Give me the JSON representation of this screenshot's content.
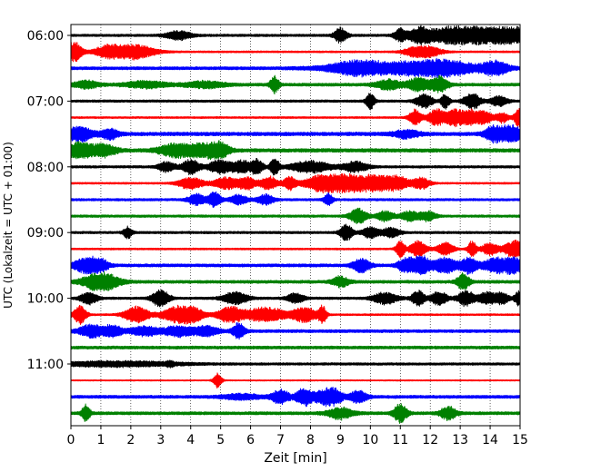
{
  "chart_data": {
    "type": "line",
    "title": "",
    "xlabel": "Zeit  [min]",
    "ylabel": "UTC (Lokalzeit = UTC + 01:00)",
    "xlim": [
      0,
      15
    ],
    "x_ticks": [
      "0",
      "1",
      "2",
      "3",
      "4",
      "5",
      "6",
      "7",
      "8",
      "9",
      "10",
      "11",
      "12",
      "13",
      "14",
      "15"
    ],
    "y_tick_labels": [
      "06:00",
      "07:00",
      "08:00",
      "09:00",
      "10:00",
      "11:00"
    ],
    "grid": "vertical dotted",
    "colors": [
      "#000000",
      "#ff0000",
      "#0000ff",
      "#008000"
    ],
    "traces": [
      {
        "start": "06:00",
        "color": "#000000",
        "base": 0.2,
        "bursts": [
          [
            3.6,
            0.3,
            0.7
          ],
          [
            9.0,
            0.15,
            1.2
          ],
          [
            11.0,
            0.15,
            1.0
          ],
          [
            11.6,
            0.25,
            1.0
          ],
          [
            12.0,
            0.3,
            0.8
          ],
          [
            12.8,
            0.3,
            1.2
          ],
          [
            13.3,
            0.5,
            1.5
          ],
          [
            13.8,
            0.3,
            1.3
          ],
          [
            14.5,
            0.4,
            1.2
          ],
          [
            14.95,
            0.2,
            1.1
          ]
        ]
      },
      {
        "start": "06:15",
        "color": "#ff0000",
        "base": 0.15,
        "bursts": [
          [
            0.1,
            0.2,
            1.6
          ],
          [
            1.2,
            0.3,
            0.9
          ],
          [
            2.1,
            0.5,
            1.2
          ],
          [
            11.5,
            0.3,
            0.7
          ],
          [
            12.0,
            0.3,
            0.7
          ]
        ]
      },
      {
        "start": "06:30",
        "color": "#0000ff",
        "base": 0.25,
        "bursts": [
          [
            9.5,
            0.6,
            0.7
          ],
          [
            11.0,
            1.5,
            0.8
          ],
          [
            12.5,
            0.8,
            0.8
          ],
          [
            14.2,
            0.3,
            1.0
          ]
        ]
      },
      {
        "start": "06:45",
        "color": "#008000",
        "base": 0.25,
        "bursts": [
          [
            0.5,
            0.3,
            0.6
          ],
          [
            2.5,
            0.5,
            0.5
          ],
          [
            4.5,
            0.5,
            0.5
          ],
          [
            6.8,
            0.1,
            1.4
          ],
          [
            10.6,
            0.3,
            0.8
          ],
          [
            11.6,
            0.25,
            1.1
          ],
          [
            12.3,
            0.2,
            1.3
          ]
        ]
      },
      {
        "start": "07:00",
        "color": "#000000",
        "base": 0.2,
        "bursts": [
          [
            10.0,
            0.1,
            1.3
          ],
          [
            11.8,
            0.2,
            1.1
          ],
          [
            12.5,
            0.1,
            1.2
          ],
          [
            13.4,
            0.2,
            1.3
          ],
          [
            14.3,
            0.2,
            0.8
          ]
        ]
      },
      {
        "start": "07:15",
        "color": "#ff0000",
        "base": 0.15,
        "bursts": [
          [
            11.5,
            0.15,
            1.3
          ],
          [
            12.2,
            0.2,
            1.4
          ],
          [
            12.8,
            0.2,
            1.4
          ],
          [
            13.3,
            0.2,
            1.2
          ],
          [
            13.8,
            0.2,
            1.1
          ],
          [
            14.4,
            0.15,
            0.8
          ],
          [
            14.95,
            0.1,
            1.6
          ]
        ]
      },
      {
        "start": "07:30",
        "color": "#0000ff",
        "base": 0.3,
        "bursts": [
          [
            0.3,
            0.3,
            1.2
          ],
          [
            1.3,
            0.2,
            0.8
          ],
          [
            11.2,
            0.3,
            0.6
          ],
          [
            14.1,
            0.2,
            1.2
          ],
          [
            14.7,
            0.25,
            1.5
          ]
        ]
      },
      {
        "start": "07:45",
        "color": "#008000",
        "base": 0.3,
        "bursts": [
          [
            0.3,
            0.3,
            1.3
          ],
          [
            1.1,
            0.3,
            0.9
          ],
          [
            3.5,
            0.4,
            1.0
          ],
          [
            4.5,
            0.4,
            1.1
          ],
          [
            5.0,
            0.2,
            0.9
          ]
        ]
      },
      {
        "start": "08:00",
        "color": "#000000",
        "base": 0.2,
        "bursts": [
          [
            3.2,
            0.2,
            0.8
          ],
          [
            4.0,
            0.2,
            1.2
          ],
          [
            5.0,
            0.3,
            1.1
          ],
          [
            5.7,
            0.2,
            1.0
          ],
          [
            6.2,
            0.15,
            1.2
          ],
          [
            6.8,
            0.1,
            1.5
          ],
          [
            8.0,
            0.5,
            0.9
          ],
          [
            9.5,
            0.3,
            0.8
          ]
        ]
      },
      {
        "start": "08:15",
        "color": "#ff0000",
        "base": 0.15,
        "bursts": [
          [
            4.0,
            0.3,
            1.0
          ],
          [
            5.2,
            0.3,
            1.0
          ],
          [
            5.9,
            0.2,
            1.0
          ],
          [
            6.6,
            0.2,
            1.1
          ],
          [
            7.3,
            0.15,
            1.0
          ],
          [
            8.5,
            0.5,
            1.4
          ],
          [
            9.3,
            0.5,
            1.3
          ],
          [
            10.2,
            0.3,
            1.1
          ],
          [
            10.9,
            0.3,
            1.1
          ],
          [
            11.7,
            0.2,
            0.9
          ]
        ]
      },
      {
        "start": "08:30",
        "color": "#0000ff",
        "base": 0.2,
        "bursts": [
          [
            4.2,
            0.2,
            0.9
          ],
          [
            4.8,
            0.15,
            1.3
          ],
          [
            5.6,
            0.2,
            0.8
          ],
          [
            6.5,
            0.2,
            0.8
          ],
          [
            8.6,
            0.1,
            1.0
          ]
        ]
      },
      {
        "start": "08:45",
        "color": "#008000",
        "base": 0.2,
        "bursts": [
          [
            9.6,
            0.2,
            1.2
          ],
          [
            10.5,
            0.2,
            0.8
          ],
          [
            11.3,
            0.2,
            0.8
          ],
          [
            11.9,
            0.2,
            0.8
          ]
        ]
      },
      {
        "start": "09:00",
        "color": "#000000",
        "base": 0.2,
        "bursts": [
          [
            1.9,
            0.1,
            0.9
          ],
          [
            9.2,
            0.15,
            1.3
          ],
          [
            10.0,
            0.2,
            0.9
          ],
          [
            10.7,
            0.2,
            0.8
          ]
        ]
      },
      {
        "start": "09:15",
        "color": "#ff0000",
        "base": 0.15,
        "bursts": [
          [
            11.0,
            0.1,
            1.5
          ],
          [
            11.6,
            0.2,
            1.3
          ],
          [
            12.5,
            0.2,
            1.1
          ],
          [
            13.4,
            0.1,
            1.3
          ],
          [
            14.0,
            0.2,
            1.0
          ],
          [
            14.7,
            0.2,
            1.1
          ],
          [
            14.95,
            0.1,
            1.3
          ]
        ]
      },
      {
        "start": "09:30",
        "color": "#0000ff",
        "base": 0.25,
        "bursts": [
          [
            0.5,
            0.3,
            1.2
          ],
          [
            1.0,
            0.2,
            0.8
          ],
          [
            9.7,
            0.2,
            1.1
          ],
          [
            11.2,
            0.2,
            1.1
          ],
          [
            11.7,
            0.2,
            1.5
          ],
          [
            12.5,
            0.3,
            1.2
          ],
          [
            13.3,
            0.2,
            1.2
          ],
          [
            14.2,
            0.3,
            1.2
          ],
          [
            14.8,
            0.2,
            1.2
          ]
        ]
      },
      {
        "start": "09:45",
        "color": "#008000",
        "base": 0.25,
        "bursts": [
          [
            1.0,
            0.4,
            1.6
          ],
          [
            9.0,
            0.2,
            0.8
          ],
          [
            13.1,
            0.15,
            1.3
          ]
        ]
      },
      {
        "start": "10:00",
        "color": "#000000",
        "base": 0.2,
        "bursts": [
          [
            0.6,
            0.2,
            1.0
          ],
          [
            3.0,
            0.2,
            1.4
          ],
          [
            5.5,
            0.3,
            1.0
          ],
          [
            7.5,
            0.2,
            0.8
          ],
          [
            10.5,
            0.3,
            0.9
          ],
          [
            11.6,
            0.15,
            1.2
          ],
          [
            12.3,
            0.2,
            1.1
          ],
          [
            13.2,
            0.2,
            1.2
          ],
          [
            13.9,
            0.2,
            1.0
          ],
          [
            14.4,
            0.15,
            1.0
          ],
          [
            14.95,
            0.1,
            1.1
          ]
        ]
      },
      {
        "start": "10:15",
        "color": "#ff0000",
        "base": 0.15,
        "bursts": [
          [
            0.3,
            0.15,
            1.6
          ],
          [
            2.2,
            0.3,
            1.3
          ],
          [
            3.4,
            0.3,
            1.0
          ],
          [
            4.0,
            0.3,
            1.5
          ],
          [
            5.3,
            0.3,
            1.3
          ],
          [
            6.5,
            0.5,
            1.2
          ],
          [
            7.8,
            0.3,
            1.2
          ],
          [
            8.4,
            0.1,
            1.3
          ]
        ]
      },
      {
        "start": "10:30",
        "color": "#0000ff",
        "base": 0.25,
        "bursts": [
          [
            0.7,
            0.3,
            1.0
          ],
          [
            1.4,
            0.2,
            0.9
          ],
          [
            2.5,
            0.4,
            0.7
          ],
          [
            3.6,
            0.3,
            0.8
          ],
          [
            4.5,
            0.3,
            0.8
          ],
          [
            5.6,
            0.15,
            1.2
          ]
        ]
      },
      {
        "start": "10:45",
        "color": "#008000",
        "base": 0.25,
        "bursts": []
      },
      {
        "start": "11:00",
        "color": "#000000",
        "base": 0.2,
        "bursts": [
          [
            1.5,
            1.5,
            0.4
          ],
          [
            3.3,
            0.1,
            0.3
          ]
        ]
      },
      {
        "start": "11:15",
        "color": "#ff0000",
        "base": 0.1,
        "bursts": [
          [
            4.9,
            0.1,
            1.2
          ]
        ]
      },
      {
        "start": "11:30",
        "color": "#0000ff",
        "base": 0.25,
        "bursts": [
          [
            5.7,
            0.5,
            0.4
          ],
          [
            7.0,
            0.2,
            1.1
          ],
          [
            7.8,
            0.2,
            1.4
          ],
          [
            8.4,
            0.2,
            1.0
          ],
          [
            8.8,
            0.2,
            1.2
          ],
          [
            9.6,
            0.2,
            1.0
          ]
        ]
      },
      {
        "start": "11:45",
        "color": "#008000",
        "base": 0.25,
        "bursts": [
          [
            0.5,
            0.1,
            1.3
          ],
          [
            9.0,
            0.3,
            0.9
          ],
          [
            11.0,
            0.15,
            1.6
          ],
          [
            12.6,
            0.2,
            1.0
          ]
        ]
      }
    ]
  }
}
